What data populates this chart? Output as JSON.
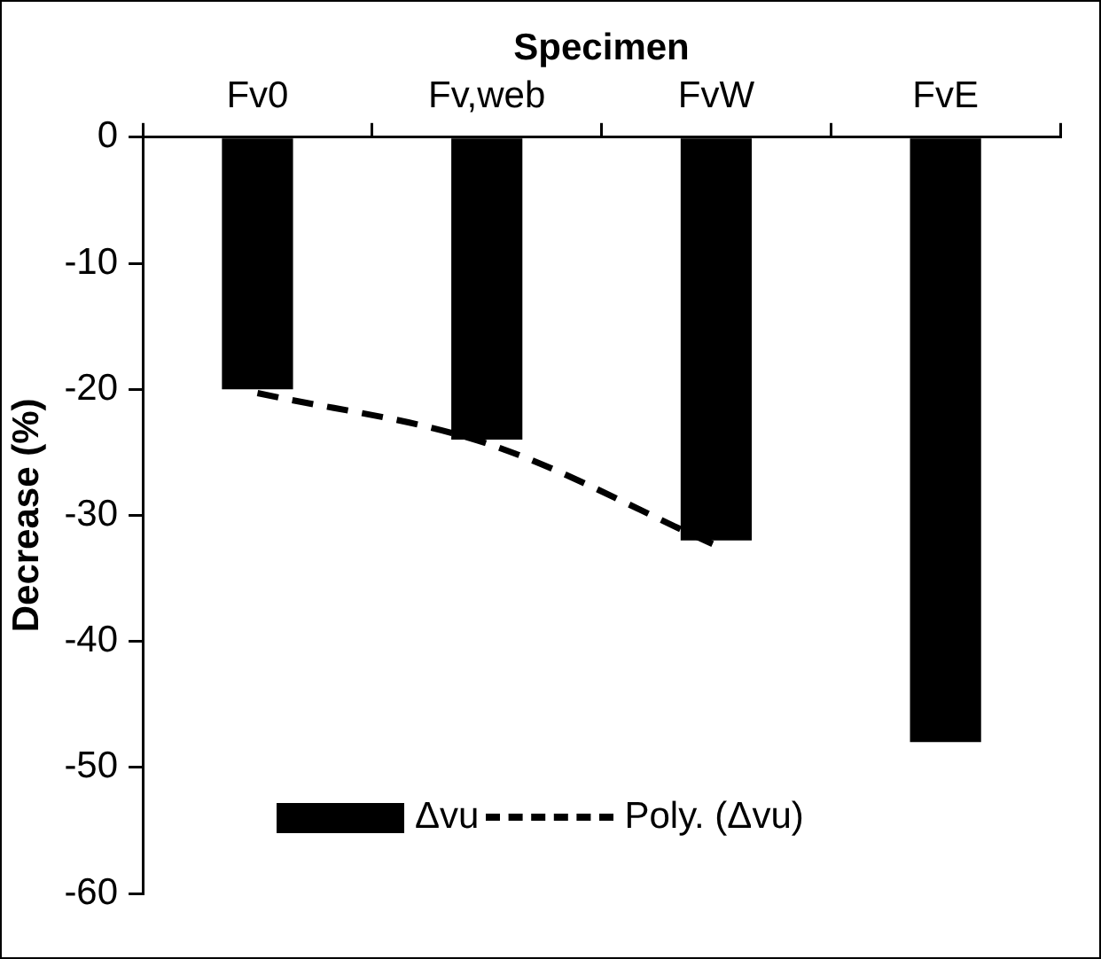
{
  "chart_data": {
    "type": "bar",
    "xlabel": "Specimen",
    "ylabel": "Decrease (%)",
    "categories": [
      "Fv0",
      "Fv,web",
      "FvW",
      "FvE"
    ],
    "series": [
      {
        "name": "Δvu",
        "color": "#000000",
        "values": [
          -20,
          -24,
          -32,
          -48
        ]
      },
      {
        "name": "Poly. (Δvu)",
        "type": "line",
        "color": "#000000",
        "line_style": "dashed",
        "marker": "none",
        "values": [
          -20.3,
          -24.3,
          -32.4,
          null
        ]
      }
    ],
    "ylim": [
      -60,
      0
    ],
    "yticks": [
      -60,
      -50,
      -40,
      -30,
      -20,
      -10,
      0
    ],
    "grid": false,
    "legend": "bottom"
  }
}
